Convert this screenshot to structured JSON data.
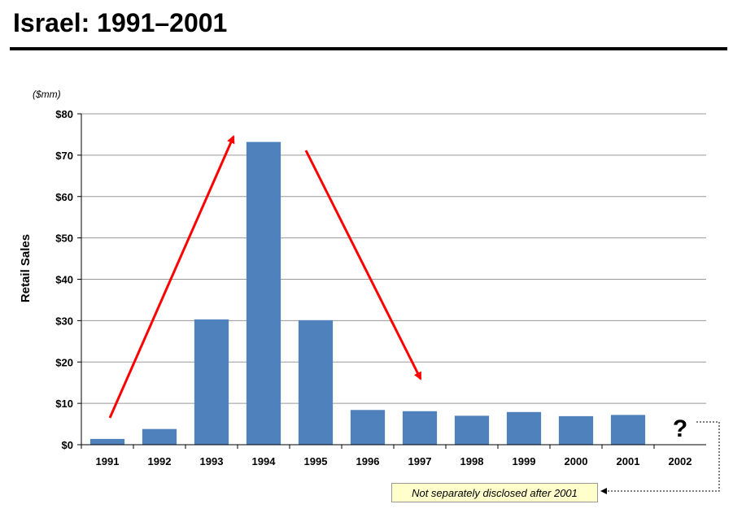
{
  "title": "Israel: 1991–2001",
  "chart_data": {
    "type": "bar",
    "unit_label": "($mm)",
    "ylabel": "Retail Sales",
    "xlabel": "",
    "ylim": [
      0,
      80
    ],
    "y_ticks": [
      "$0",
      "$10",
      "$20",
      "$30",
      "$40",
      "$50",
      "$60",
      "$70",
      "$80"
    ],
    "y_tick_values": [
      0,
      10,
      20,
      30,
      40,
      50,
      60,
      70,
      80
    ],
    "grid": true,
    "categories": [
      "1991",
      "1992",
      "1993",
      "1994",
      "1995",
      "1996",
      "1997",
      "1998",
      "1999",
      "2000",
      "2001",
      "2002"
    ],
    "values": [
      1.4,
      3.8,
      30.3,
      73.2,
      30.1,
      8.4,
      8.1,
      7.0,
      7.9,
      6.9,
      7.2,
      null
    ],
    "bar_color": "#4f81bd",
    "arrow_color": "#ff0000",
    "unknown_marker": "?",
    "annotation": "Not separately disclosed after 2001"
  }
}
